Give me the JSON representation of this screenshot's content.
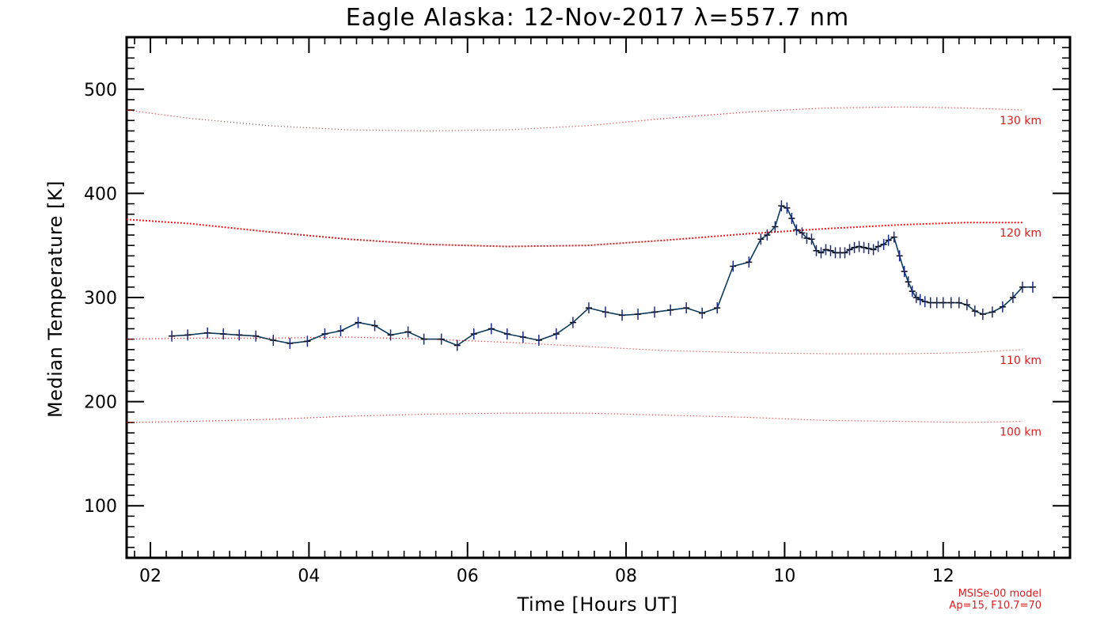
{
  "chart_data": {
    "type": "line",
    "title": "Eagle Alaska: 12-Nov-2017 λ=557.7 nm",
    "xlabel": "Time [Hours UT]",
    "ylabel": "Median Temperature [K]",
    "xlim": [
      1.7,
      13.6
    ],
    "ylim": [
      50,
      550
    ],
    "x_ticks": [
      {
        "v": 2,
        "label": "02"
      },
      {
        "v": 4,
        "label": "04"
      },
      {
        "v": 6,
        "label": "06"
      },
      {
        "v": 8,
        "label": "08"
      },
      {
        "v": 10,
        "label": "10"
      },
      {
        "v": 12,
        "label": "12"
      }
    ],
    "y_ticks": [
      {
        "v": 100,
        "label": "100"
      },
      {
        "v": 200,
        "label": "200"
      },
      {
        "v": 300,
        "label": "300"
      },
      {
        "v": 400,
        "label": "400"
      },
      {
        "v": 500,
        "label": "500"
      }
    ],
    "grid": false,
    "series": [
      {
        "color": "#0b3a5c",
        "x": [
          2.27,
          2.47,
          2.72,
          2.92,
          3.12,
          3.33,
          3.55,
          3.76,
          3.98,
          4.2,
          4.4,
          4.62,
          4.83,
          5.03,
          5.25,
          5.45,
          5.67,
          5.87,
          6.08,
          6.3,
          6.5,
          6.7,
          6.9,
          7.12,
          7.33,
          7.53,
          7.74,
          7.95,
          8.15,
          8.36,
          8.56,
          8.76,
          8.96,
          9.15,
          9.35,
          9.55,
          9.7,
          9.78,
          9.88,
          9.96,
          10.03,
          10.09,
          10.15,
          10.22,
          10.28,
          10.34,
          10.4,
          10.46,
          10.52,
          10.58,
          10.64,
          10.7,
          10.76,
          10.82,
          10.88,
          10.94,
          11.0,
          11.06,
          11.12,
          11.18,
          11.25,
          11.31,
          11.38,
          11.45,
          11.51,
          11.56,
          11.61,
          11.66,
          11.71,
          11.77,
          11.84,
          11.92,
          12.0,
          12.1,
          12.2,
          12.3,
          12.4,
          12.5,
          12.62,
          12.75,
          12.88,
          13.0,
          13.13
        ],
        "y": [
          263,
          264,
          266,
          265,
          264,
          263,
          259,
          256,
          258,
          265,
          268,
          276,
          273,
          264,
          267,
          260,
          260,
          254,
          265,
          270,
          265,
          262,
          259,
          265,
          276,
          290,
          286,
          283,
          284,
          286,
          288,
          290,
          285,
          290,
          330,
          334,
          356,
          360,
          368,
          388,
          386,
          376,
          365,
          362,
          357,
          356,
          345,
          343,
          346,
          345,
          343,
          343,
          343,
          346,
          348,
          349,
          348,
          347,
          346,
          349,
          351,
          355,
          358,
          340,
          325,
          315,
          306,
          300,
          298,
          296,
          295,
          295,
          295,
          295,
          295,
          293,
          287,
          284,
          286,
          291,
          300,
          310,
          310
        ]
      }
    ],
    "model_curves": [
      {
        "label": "130 km",
        "color": "#e31a1c",
        "x": [
          1.7,
          2.5,
          3.5,
          4.5,
          5.5,
          6.5,
          7.5,
          8.5,
          9.5,
          10.5,
          11.5,
          12.3,
          13.0
        ],
        "y": [
          480,
          472,
          465,
          461,
          460,
          461,
          465,
          472,
          478,
          482,
          483,
          482,
          480
        ]
      },
      {
        "label": "120 km",
        "color": "#e31a1c",
        "x": [
          1.7,
          2.5,
          3.5,
          4.5,
          5.5,
          6.5,
          7.5,
          8.5,
          9.5,
          10.5,
          11.5,
          12.3,
          13.0
        ],
        "y": [
          375,
          371,
          363,
          356,
          351,
          349,
          350,
          355,
          361,
          366,
          370,
          372,
          372
        ]
      },
      {
        "label": "110 km",
        "color": "#e31a1c",
        "x": [
          1.7,
          2.5,
          3.5,
          4.5,
          5.5,
          6.5,
          7.5,
          8.5,
          9.5,
          10.5,
          11.5,
          12.3,
          13.0
        ],
        "y": [
          260,
          261,
          261,
          262,
          260,
          257,
          253,
          249,
          247,
          246,
          246,
          247,
          250
        ]
      },
      {
        "label": "100 km",
        "color": "#e31a1c",
        "x": [
          1.7,
          2.5,
          3.5,
          4.5,
          5.5,
          6.5,
          7.5,
          8.5,
          9.5,
          10.5,
          11.5,
          12.3,
          13.0
        ],
        "y": [
          180,
          181,
          183,
          186,
          188,
          189,
          189,
          187,
          185,
          182,
          181,
          180,
          181
        ]
      }
    ],
    "model_note": [
      "MSISe-00 model",
      "Ap=15, F10.7=70"
    ]
  }
}
